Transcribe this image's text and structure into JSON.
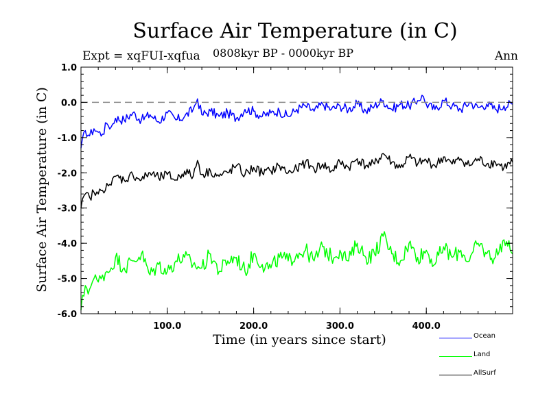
{
  "chart_data": {
    "type": "line",
    "title": "Surface Air Temperature (in C)",
    "subtitle": "0808kyr BP - 0000kyr BP",
    "expt_label": "Expt = xqFUI-xqfua",
    "season_label": "Ann",
    "xlabel": "Time (in years since start)",
    "ylabel": "Surface Air Temperature (in C)",
    "xlim": [
      0,
      500
    ],
    "ylim": [
      -6.0,
      1.0
    ],
    "xticks": [
      100,
      200,
      300,
      400
    ],
    "xtick_labels": [
      "100.0",
      "200.0",
      "300.0",
      "400.0"
    ],
    "yticks": [
      1.0,
      0.0,
      -1.0,
      -2.0,
      -3.0,
      -4.0,
      -5.0,
      -6.0
    ],
    "ytick_labels": [
      "1.0",
      "0.0",
      "-1.0",
      "-2.0",
      "-3.0",
      "-4.0",
      "-5.0",
      "-6.0"
    ],
    "reference_line": 0.0,
    "series": [
      {
        "name": "Ocean",
        "color": "#0000ff",
        "x": [
          0,
          5,
          10,
          15,
          20,
          25,
          30,
          35,
          40,
          50,
          60,
          70,
          80,
          90,
          100,
          110,
          120,
          130,
          135,
          140,
          150,
          160,
          170,
          180,
          190,
          200,
          210,
          220,
          230,
          240,
          250,
          260,
          270,
          280,
          290,
          300,
          310,
          320,
          330,
          340,
          350,
          360,
          370,
          380,
          390,
          395,
          400,
          410,
          420,
          430,
          440,
          450,
          460,
          470,
          480,
          490,
          500
        ],
        "values": [
          -1.3,
          -0.8,
          -0.95,
          -0.75,
          -0.85,
          -0.9,
          -0.6,
          -0.7,
          -0.45,
          -0.5,
          -0.3,
          -0.5,
          -0.35,
          -0.55,
          -0.3,
          -0.5,
          -0.4,
          -0.2,
          0.1,
          -0.35,
          -0.25,
          -0.4,
          -0.3,
          -0.45,
          -0.2,
          -0.25,
          -0.4,
          -0.3,
          -0.25,
          -0.4,
          -0.2,
          -0.1,
          -0.25,
          -0.05,
          -0.2,
          -0.1,
          -0.2,
          -0.05,
          -0.25,
          -0.1,
          0.05,
          -0.2,
          -0.05,
          -0.1,
          0.05,
          0.2,
          -0.05,
          -0.2,
          0.05,
          -0.1,
          -0.2,
          0.0,
          -0.15,
          -0.05,
          -0.2,
          -0.1,
          -0.05
        ]
      },
      {
        "name": "Land",
        "color": "#00ff00",
        "x": [
          0,
          5,
          10,
          15,
          20,
          25,
          30,
          35,
          40,
          50,
          60,
          70,
          80,
          90,
          100,
          110,
          120,
          130,
          140,
          150,
          160,
          170,
          180,
          190,
          200,
          210,
          220,
          230,
          240,
          250,
          260,
          270,
          280,
          290,
          300,
          310,
          320,
          330,
          340,
          350,
          360,
          370,
          380,
          390,
          400,
          410,
          420,
          430,
          440,
          450,
          460,
          470,
          480,
          490,
          500
        ],
        "values": [
          -5.9,
          -5.2,
          -5.3,
          -5.0,
          -5.1,
          -4.9,
          -4.8,
          -4.7,
          -4.4,
          -4.7,
          -4.5,
          -4.3,
          -4.9,
          -4.6,
          -4.8,
          -4.5,
          -4.4,
          -4.6,
          -4.7,
          -4.3,
          -4.8,
          -4.5,
          -4.4,
          -4.8,
          -4.3,
          -4.6,
          -4.7,
          -4.4,
          -4.5,
          -4.3,
          -4.2,
          -4.5,
          -4.1,
          -4.4,
          -4.2,
          -4.5,
          -4.0,
          -4.4,
          -4.3,
          -3.8,
          -4.3,
          -4.5,
          -4.0,
          -4.4,
          -4.2,
          -4.6,
          -4.1,
          -4.4,
          -4.2,
          -4.5,
          -4.0,
          -4.3,
          -4.4,
          -3.9,
          -4.3
        ]
      },
      {
        "name": "AllSurf",
        "color": "#000000",
        "x": [
          0,
          5,
          10,
          15,
          20,
          25,
          30,
          35,
          40,
          50,
          60,
          70,
          80,
          90,
          100,
          110,
          120,
          130,
          135,
          140,
          150,
          160,
          170,
          180,
          190,
          200,
          210,
          220,
          230,
          240,
          250,
          260,
          270,
          280,
          290,
          300,
          310,
          320,
          330,
          340,
          350,
          360,
          370,
          380,
          390,
          400,
          410,
          420,
          430,
          440,
          450,
          460,
          470,
          480,
          490,
          500
        ],
        "values": [
          -3.0,
          -2.6,
          -2.7,
          -2.55,
          -2.6,
          -2.5,
          -2.3,
          -2.35,
          -2.1,
          -2.2,
          -2.05,
          -2.2,
          -2.0,
          -2.15,
          -2.05,
          -2.2,
          -1.95,
          -2.1,
          -1.65,
          -2.05,
          -1.95,
          -2.1,
          -2.0,
          -1.8,
          -2.05,
          -1.85,
          -2.0,
          -1.95,
          -1.8,
          -2.0,
          -1.9,
          -1.7,
          -1.9,
          -1.75,
          -1.95,
          -1.7,
          -1.85,
          -1.6,
          -1.8,
          -1.75,
          -1.45,
          -1.7,
          -1.85,
          -1.55,
          -1.75,
          -1.65,
          -1.8,
          -1.55,
          -1.75,
          -1.6,
          -1.8,
          -1.6,
          -1.75,
          -1.7,
          -1.85,
          -1.7
        ]
      }
    ],
    "legend_position": "bottom-right"
  }
}
